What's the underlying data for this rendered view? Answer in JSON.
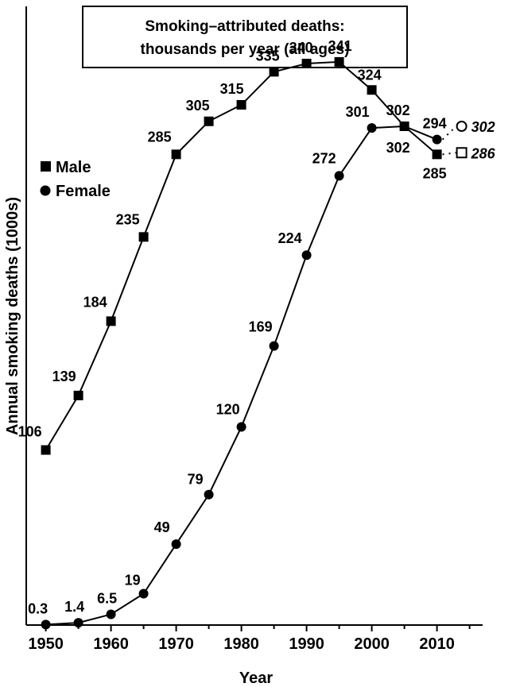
{
  "chart_data": {
    "type": "line",
    "title_lines": [
      "Smoking–attributed deaths:",
      "thousands per year (all ages)"
    ],
    "xlabel": "Year",
    "ylabel": "Annual smoking deaths (1000s)",
    "xlim": [
      1947,
      2017
    ],
    "ylim": [
      0,
      365
    ],
    "xticks": [
      1950,
      1960,
      1970,
      1980,
      1990,
      2000,
      2010
    ],
    "legend_position": "top-left",
    "series": [
      {
        "name": "Male",
        "marker": "square",
        "x": [
          1950,
          1955,
          1960,
          1965,
          1970,
          1975,
          1980,
          1985,
          1990,
          1995,
          2000,
          2005,
          2010
        ],
        "values": [
          106,
          139,
          184,
          235,
          285,
          305,
          315,
          335,
          340,
          341,
          324,
          302,
          285
        ],
        "labels": [
          "106",
          "139",
          "184",
          "235",
          "285",
          "305",
          "315",
          "335",
          "340",
          "341",
          "324",
          "302",
          "285"
        ],
        "projection": {
          "x": 2015,
          "value": 286,
          "label": "286"
        }
      },
      {
        "name": "Female",
        "marker": "circle",
        "x": [
          1950,
          1955,
          1960,
          1965,
          1970,
          1975,
          1980,
          1985,
          1990,
          1995,
          2000,
          2005,
          2010
        ],
        "values": [
          0.3,
          1.4,
          6.5,
          19,
          49,
          79,
          120,
          169,
          224,
          272,
          301,
          302,
          294
        ],
        "labels": [
          "0.3",
          "1.4",
          "6.5",
          "19",
          "49",
          "79",
          "120",
          "169",
          "224",
          "272",
          "301",
          "302",
          "294"
        ],
        "projection": {
          "x": 2015,
          "value": 302,
          "label": "302"
        }
      }
    ]
  }
}
